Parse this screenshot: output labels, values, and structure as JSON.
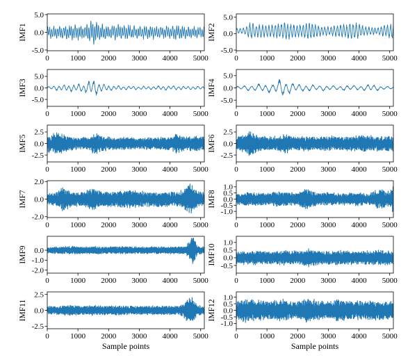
{
  "figure": {
    "xlabel": "Sample points",
    "xlim": [
      0,
      5120
    ],
    "x_ticks": [
      0,
      1000,
      2000,
      3000,
      4000,
      5000
    ],
    "x_tick_labels": [
      "0",
      "1000",
      "2000",
      "3000",
      "4000",
      "5000"
    ],
    "line_color": "#1f77b4"
  },
  "chart_data": [
    {
      "type": "line",
      "ylabel": "IMF1",
      "ylim": [
        -5.2,
        5.2
      ],
      "y_ticks": [
        -5,
        0,
        5
      ],
      "y_tick_labels": [
        "-5.0",
        "0.0",
        "5.0"
      ],
      "series": [
        {
          "name": "IMF1",
          "amp": 2.4,
          "freq": 0.55,
          "seed": 11,
          "style": "oscillation",
          "envelope": [
            [
              0,
              0.8
            ],
            [
              400,
              0.9
            ],
            [
              800,
              1.0
            ],
            [
              1200,
              1.0
            ],
            [
              1500,
              1.6
            ],
            [
              1700,
              1.2
            ],
            [
              2000,
              0.9
            ],
            [
              2300,
              1.1
            ],
            [
              2600,
              1.0
            ],
            [
              3000,
              0.9
            ],
            [
              3400,
              0.9
            ],
            [
              3800,
              0.8
            ],
            [
              4100,
              1.0
            ],
            [
              4400,
              0.9
            ],
            [
              4800,
              0.8
            ],
            [
              5120,
              0.8
            ]
          ]
        }
      ]
    },
    {
      "type": "line",
      "ylabel": "IMF2",
      "ylim": [
        -5.2,
        6.0
      ],
      "y_ticks": [
        -5,
        0,
        5
      ],
      "y_tick_labels": [
        "-5.0",
        "0.0",
        "5.0"
      ],
      "series": [
        {
          "name": "IMF2",
          "amp": 2.8,
          "freq": 0.35,
          "seed": 23,
          "style": "bursty",
          "envelope": [
            [
              0,
              0.3
            ],
            [
              300,
              0.4
            ],
            [
              450,
              1.0
            ],
            [
              700,
              0.8
            ],
            [
              1000,
              0.7
            ],
            [
              1400,
              0.9
            ],
            [
              1600,
              1.0
            ],
            [
              2000,
              0.7
            ],
            [
              2400,
              1.0
            ],
            [
              2700,
              0.6
            ],
            [
              3000,
              0.5
            ],
            [
              3500,
              0.8
            ],
            [
              3900,
              1.0
            ],
            [
              4200,
              0.5
            ],
            [
              4600,
              0.4
            ],
            [
              5120,
              1.0
            ]
          ]
        }
      ]
    },
    {
      "type": "line",
      "ylabel": "IMF3",
      "ylim": [
        -8.0,
        8.0
      ],
      "y_ticks": [
        -5,
        0,
        5
      ],
      "y_tick_labels": [
        "-5.0",
        "0.0",
        "5.0"
      ],
      "series": [
        {
          "name": "IMF3",
          "amp": 3.0,
          "freq": 0.22,
          "seed": 37,
          "style": "oscillation",
          "envelope": [
            [
              0,
              0.2
            ],
            [
              400,
              0.5
            ],
            [
              800,
              0.6
            ],
            [
              1200,
              0.7
            ],
            [
              1450,
              1.5
            ],
            [
              1600,
              1.2
            ],
            [
              1800,
              0.6
            ],
            [
              2200,
              0.4
            ],
            [
              2600,
              0.3
            ],
            [
              3000,
              0.3
            ],
            [
              3500,
              0.3
            ],
            [
              4000,
              0.4
            ],
            [
              4500,
              0.3
            ],
            [
              5120,
              0.3
            ]
          ]
        }
      ]
    },
    {
      "type": "line",
      "ylabel": "IMF4",
      "ylim": [
        -7.5,
        7.5
      ],
      "y_ticks": [
        -5,
        0,
        5
      ],
      "y_tick_labels": [
        "-5.0",
        "0.0",
        "5.0"
      ],
      "series": [
        {
          "name": "IMF4",
          "amp": 2.6,
          "freq": 0.16,
          "seed": 41,
          "style": "oscillation",
          "envelope": [
            [
              0,
              0.3
            ],
            [
              400,
              0.5
            ],
            [
              800,
              0.7
            ],
            [
              1200,
              0.8
            ],
            [
              1500,
              1.7
            ],
            [
              1700,
              1.1
            ],
            [
              2000,
              0.7
            ],
            [
              2400,
              0.6
            ],
            [
              2800,
              0.5
            ],
            [
              3200,
              0.4
            ],
            [
              3600,
              0.5
            ],
            [
              4000,
              0.4
            ],
            [
              4400,
              0.7
            ],
            [
              4800,
              0.3
            ],
            [
              5120,
              0.3
            ]
          ]
        }
      ]
    },
    {
      "type": "line",
      "ylabel": "IMF5",
      "ylim": [
        -4.0,
        4.0
      ],
      "y_ticks": [
        -2.5,
        0,
        2.5
      ],
      "y_tick_labels": [
        "-2.5",
        "0.0",
        "2.5"
      ],
      "series": [
        {
          "name": "IMF5",
          "amp": 1.5,
          "freq": 0.9,
          "seed": 53,
          "style": "dense",
          "envelope": [
            [
              0,
              1.1
            ],
            [
              300,
              1.6
            ],
            [
              600,
              1.0
            ],
            [
              1000,
              0.8
            ],
            [
              1400,
              0.9
            ],
            [
              1550,
              1.6
            ],
            [
              1800,
              1.0
            ],
            [
              2200,
              0.8
            ],
            [
              2600,
              0.9
            ],
            [
              3000,
              0.8
            ],
            [
              3500,
              0.8
            ],
            [
              4000,
              0.9
            ],
            [
              4200,
              1.3
            ],
            [
              4500,
              0.9
            ],
            [
              4800,
              1.0
            ],
            [
              5120,
              1.0
            ]
          ]
        }
      ]
    },
    {
      "type": "line",
      "ylabel": "IMF6",
      "ylim": [
        -4.0,
        4.0
      ],
      "y_ticks": [
        -2.5,
        0,
        2.5
      ],
      "y_tick_labels": [
        "-2.5",
        "0.0",
        "2.5"
      ],
      "series": [
        {
          "name": "IMF6",
          "amp": 1.5,
          "freq": 0.9,
          "seed": 61,
          "style": "dense",
          "envelope": [
            [
              0,
              0.9
            ],
            [
              300,
              1.3
            ],
            [
              450,
              1.8
            ],
            [
              700,
              1.1
            ],
            [
              1000,
              0.9
            ],
            [
              1400,
              1.0
            ],
            [
              1600,
              1.3
            ],
            [
              1900,
              0.9
            ],
            [
              2300,
              1.0
            ],
            [
              2700,
              0.9
            ],
            [
              3100,
              1.0
            ],
            [
              3500,
              0.9
            ],
            [
              4000,
              1.1
            ],
            [
              4500,
              1.0
            ],
            [
              5120,
              1.1
            ]
          ]
        }
      ]
    },
    {
      "type": "line",
      "ylabel": "IMF7",
      "ylim": [
        -2.1,
        2.1
      ],
      "y_ticks": [
        -2,
        0,
        2
      ],
      "y_tick_labels": [
        "-2.0",
        "0.0",
        "2.0"
      ],
      "series": [
        {
          "name": "IMF7",
          "amp": 0.85,
          "freq": 0.9,
          "seed": 71,
          "style": "dense",
          "envelope": [
            [
              0,
              0.6
            ],
            [
              300,
              0.9
            ],
            [
              500,
              1.6
            ],
            [
              800,
              0.9
            ],
            [
              1100,
              0.9
            ],
            [
              1500,
              1.4
            ],
            [
              1800,
              0.9
            ],
            [
              2200,
              1.0
            ],
            [
              2600,
              1.1
            ],
            [
              3000,
              1.0
            ],
            [
              3400,
              0.9
            ],
            [
              3800,
              1.0
            ],
            [
              4300,
              0.9
            ],
            [
              4700,
              1.9
            ],
            [
              4900,
              0.9
            ],
            [
              5120,
              0.8
            ]
          ]
        }
      ]
    },
    {
      "type": "line",
      "ylabel": "IMF8",
      "ylim": [
        -1.5,
        1.5
      ],
      "y_ticks": [
        -1,
        -0.5,
        0,
        0.5,
        1
      ],
      "y_tick_labels": [
        "-1.0",
        "-0.5",
        "0.0",
        "0.5",
        "1.0"
      ],
      "series": [
        {
          "name": "IMF8",
          "amp": 0.55,
          "freq": 0.9,
          "seed": 83,
          "style": "dense",
          "envelope": [
            [
              0,
              0.7
            ],
            [
              300,
              0.9
            ],
            [
              600,
              1.0
            ],
            [
              1000,
              0.8
            ],
            [
              1400,
              1.1
            ],
            [
              1700,
              0.9
            ],
            [
              2000,
              0.9
            ],
            [
              2300,
              1.4
            ],
            [
              2600,
              0.9
            ],
            [
              3000,
              0.9
            ],
            [
              3400,
              0.8
            ],
            [
              3800,
              0.9
            ],
            [
              4300,
              0.8
            ],
            [
              4700,
              1.4
            ],
            [
              5000,
              1.0
            ],
            [
              5120,
              1.9
            ]
          ]
        }
      ]
    },
    {
      "type": "line",
      "ylabel": "IMF9",
      "ylim": [
        -2.3,
        1.4
      ],
      "y_ticks": [
        -2,
        -1,
        0
      ],
      "y_tick_labels": [
        "-2.0",
        "-1.0",
        "0.0"
      ],
      "series": [
        {
          "name": "IMF9",
          "amp": 0.4,
          "freq": 0.9,
          "seed": 97,
          "style": "dense",
          "envelope": [
            [
              0,
              0.7
            ],
            [
              400,
              0.8
            ],
            [
              800,
              0.9
            ],
            [
              1200,
              0.8
            ],
            [
              1600,
              0.9
            ],
            [
              2000,
              0.8
            ],
            [
              2400,
              0.9
            ],
            [
              2800,
              0.8
            ],
            [
              3200,
              0.8
            ],
            [
              3600,
              0.8
            ],
            [
              4000,
              0.9
            ],
            [
              4500,
              0.8
            ],
            [
              4750,
              3.5
            ],
            [
              4900,
              1.0
            ],
            [
              5120,
              0.8
            ]
          ]
        }
      ]
    },
    {
      "type": "line",
      "ylabel": "IMF10",
      "ylim": [
        -1.0,
        1.4
      ],
      "y_ticks": [
        -0.5,
        0,
        0.5,
        1
      ],
      "y_tick_labels": [
        "-0.5",
        "0.0",
        "0.5",
        "1.0"
      ],
      "series": [
        {
          "name": "IMF10",
          "amp": 0.4,
          "freq": 0.9,
          "seed": 101,
          "style": "dense",
          "envelope": [
            [
              0,
              0.9
            ],
            [
              400,
              1.0
            ],
            [
              800,
              1.1
            ],
            [
              1200,
              1.0
            ],
            [
              1600,
              1.1
            ],
            [
              2000,
              1.0
            ],
            [
              2300,
              1.4
            ],
            [
              2600,
              1.1
            ],
            [
              3000,
              1.0
            ],
            [
              3400,
              1.1
            ],
            [
              3800,
              1.0
            ],
            [
              4200,
              1.0
            ],
            [
              4600,
              1.2
            ],
            [
              5000,
              1.0
            ],
            [
              5120,
              1.0
            ]
          ]
        }
      ]
    },
    {
      "type": "line",
      "ylabel": "IMF11",
      "ylim": [
        -2.9,
        2.9
      ],
      "y_ticks": [
        -2.5,
        0,
        2.5
      ],
      "y_tick_labels": [
        "-2.5",
        "0.0",
        "2.5"
      ],
      "series": [
        {
          "name": "IMF11",
          "amp": 0.7,
          "freq": 0.9,
          "seed": 113,
          "style": "dense",
          "envelope": [
            [
              0,
              0.8
            ],
            [
              400,
              0.9
            ],
            [
              700,
              1.2
            ],
            [
              1100,
              0.9
            ],
            [
              1500,
              1.1
            ],
            [
              1900,
              0.9
            ],
            [
              2300,
              1.0
            ],
            [
              2700,
              0.9
            ],
            [
              3100,
              0.9
            ],
            [
              3500,
              0.9
            ],
            [
              3900,
              1.0
            ],
            [
              4300,
              0.9
            ],
            [
              4700,
              3.0
            ],
            [
              4900,
              1.0
            ],
            [
              5120,
              0.9
            ]
          ]
        }
      ]
    },
    {
      "type": "line",
      "ylabel": "IMF12",
      "ylim": [
        -1.4,
        1.4
      ],
      "y_ticks": [
        -1,
        -0.5,
        0,
        0.5,
        1
      ],
      "y_tick_labels": [
        "-1.0",
        "-0.5",
        "0.0",
        "0.5",
        "1.0"
      ],
      "series": [
        {
          "name": "IMF12",
          "amp": 0.65,
          "freq": 0.9,
          "seed": 127,
          "style": "dense",
          "envelope": [
            [
              0,
              1.1
            ],
            [
              300,
              1.3
            ],
            [
              700,
              1.1
            ],
            [
              1100,
              1.0
            ],
            [
              1500,
              1.2
            ],
            [
              1900,
              0.9
            ],
            [
              2300,
              1.3
            ],
            [
              2600,
              1.1
            ],
            [
              3000,
              0.9
            ],
            [
              3300,
              1.2
            ],
            [
              3700,
              1.1
            ],
            [
              4100,
              1.0
            ],
            [
              4500,
              1.1
            ],
            [
              5000,
              1.0
            ],
            [
              5120,
              1.0
            ]
          ]
        }
      ]
    }
  ]
}
